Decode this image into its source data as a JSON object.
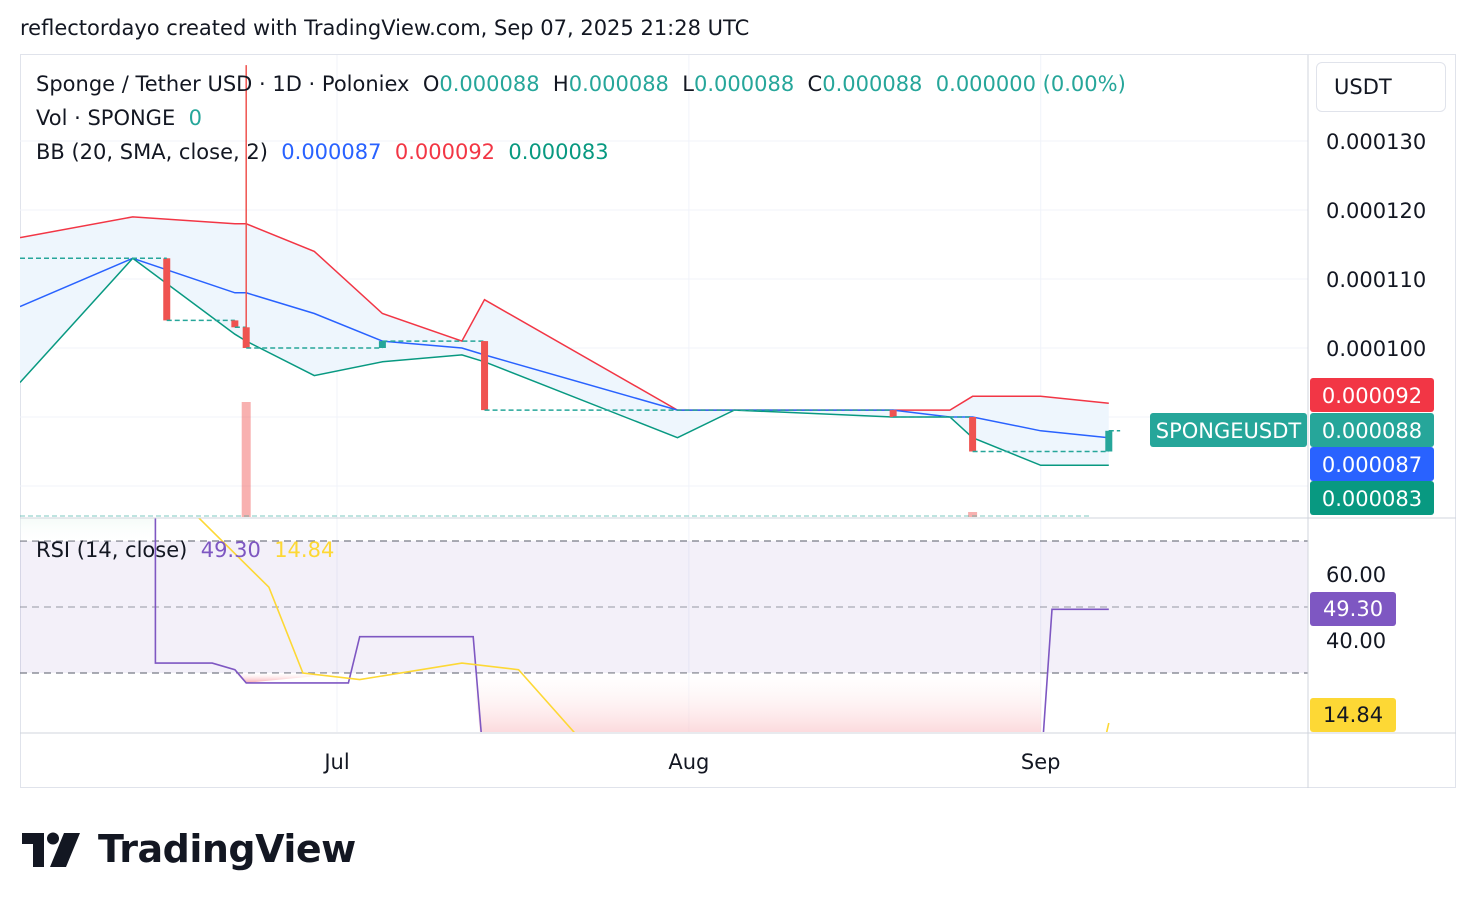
{
  "header": {
    "credit": "reflectordayo created with TradingView.com, Sep 07, 2025 21:28 UTC"
  },
  "legend": {
    "symbol": "Sponge / Tether USD · 1D · Poloniex",
    "o_label": "O",
    "o_value": "0.000088",
    "h_label": "H",
    "h_value": "0.000088",
    "l_label": "L",
    "l_value": "0.000088",
    "c_label": "C",
    "c_value": "0.000088",
    "change": "0.000000 (0.00%)",
    "vol_label": "Vol · SPONGE",
    "vol_value": "0",
    "bb_label": "BB (20, SMA, close, 2)",
    "bb_basis": "0.000087",
    "bb_upper": "0.000092",
    "bb_lower": "0.000083",
    "rsi_label": "RSI (14, close)",
    "rsi_value": "49.30",
    "rsi_ma": "14.84"
  },
  "price_axis": {
    "unit": "USDT",
    "ticks": [
      "0.000130",
      "0.000120",
      "0.000110",
      "0.000100"
    ],
    "labels": {
      "upper": "0.000092",
      "symbol": "SPONGEUSDT",
      "last": "0.000088",
      "basis": "0.000087",
      "lower": "0.000083"
    }
  },
  "rsi_axis": {
    "ticks": [
      "60.00",
      "40.00"
    ],
    "value_label": "49.30",
    "ma_label": "14.84"
  },
  "time_axis": {
    "ticks": [
      "Jul",
      "Aug",
      "Sep"
    ]
  },
  "colors": {
    "up": "#26a69a",
    "down": "#ef5350",
    "basis": "#2962ff",
    "upper": "#f23645",
    "lower": "#089981",
    "rsi": "#7e57c2",
    "rsi_ma": "#fdd835",
    "band_fill": "#eef6fd"
  },
  "logo": {
    "text": "TradingView"
  },
  "chart_data": {
    "type": "line",
    "symbol": "Sponge / Tether USD",
    "interval": "1D",
    "x": [
      "Jun 13",
      "Jun 22",
      "Jun 23",
      "Jun 29",
      "Jul 05",
      "Jul 12",
      "Jul 14",
      "Jul 31",
      "Aug 05",
      "Aug 19",
      "Aug 24",
      "Aug 26",
      "Sep 01",
      "Sep 07"
    ],
    "ylim": [
      7.8e-05,
      0.000135
    ],
    "series": [
      {
        "name": "BB upper",
        "values": [
          0.000119,
          0.000118,
          0.000118,
          0.000114,
          0.000105,
          0.000101,
          0.000107,
          9.1e-05,
          9.1e-05,
          9.1e-05,
          9.1e-05,
          9.3e-05,
          9.3e-05,
          9.2e-05
        ]
      },
      {
        "name": "BB basis",
        "values": [
          0.000113,
          0.000108,
          0.000108,
          0.000105,
          0.000101,
          0.0001,
          9.9e-05,
          9.1e-05,
          9.1e-05,
          9.1e-05,
          9e-05,
          9e-05,
          8.8e-05,
          8.7e-05
        ]
      },
      {
        "name": "BB lower",
        "values": [
          0.000113,
          0.000102,
          0.000101,
          9.6e-05,
          9.8e-05,
          9.9e-05,
          9.8e-05,
          8.7e-05,
          9.1e-05,
          9e-05,
          9e-05,
          8.7e-05,
          8.3e-05,
          8.3e-05
        ]
      }
    ],
    "candles": [
      {
        "x": "Jun 16",
        "open": 0.000113,
        "high": 0.000113,
        "low": 0.000104,
        "close": 0.000104
      },
      {
        "x": "Jun 22",
        "open": 0.000104,
        "high": 0.000104,
        "low": 0.000103,
        "close": 0.000103
      },
      {
        "x": "Jun 23",
        "open": 0.000103,
        "high": 0.000141,
        "low": 0.0001,
        "close": 0.0001
      },
      {
        "x": "Jul 05",
        "open": 0.0001,
        "high": 0.000101,
        "low": 0.0001,
        "close": 0.000101
      },
      {
        "x": "Jul 14",
        "open": 0.000101,
        "high": 0.000101,
        "low": 9.1e-05,
        "close": 9.1e-05
      },
      {
        "x": "Aug 19",
        "open": 9.1e-05,
        "high": 9.1e-05,
        "low": 9e-05,
        "close": 9e-05
      },
      {
        "x": "Aug 26",
        "open": 9e-05,
        "high": 9e-05,
        "low": 8.5e-05,
        "close": 8.5e-05
      },
      {
        "x": "Sep 07",
        "open": 8.5e-05,
        "high": 8.8e-05,
        "low": 8.5e-05,
        "close": 8.8e-05
      }
    ],
    "rsi": {
      "ylim": [
        0,
        90
      ],
      "bands": [
        30,
        50,
        70
      ],
      "x": [
        "Jun 10",
        "Jun 15",
        "Jun 15",
        "Jun 20",
        "Jun 22",
        "Jun 23",
        "Jul 02",
        "Jul 03",
        "Jul 13",
        "Jul 14",
        "Sep 01",
        "Sep 02",
        "Sep 07"
      ],
      "values": [
        88,
        88,
        33,
        33,
        31,
        27,
        27,
        41,
        41,
        0,
        0,
        49.3,
        49.3
      ],
      "ma_x": [
        "Jun 10",
        "Jun 15",
        "Jun 25",
        "Jun 28",
        "Jul 03",
        "Jul 12",
        "Jul 17",
        "Jul 25",
        "Sep 06",
        "Sep 07"
      ],
      "ma_values": [
        90,
        90,
        56,
        30,
        28,
        33,
        31,
        0,
        0,
        14.84
      ]
    }
  }
}
